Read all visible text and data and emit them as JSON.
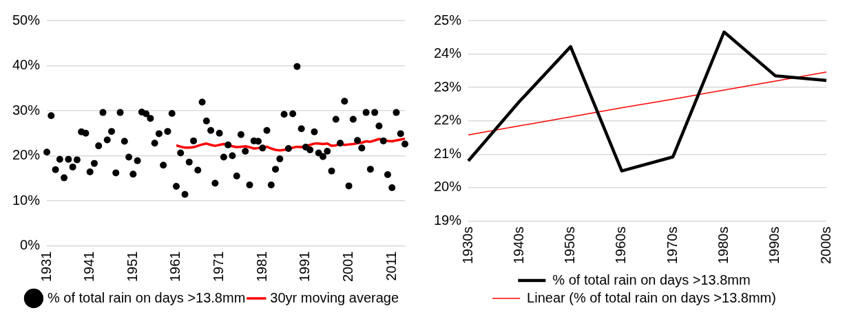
{
  "chart_data": [
    {
      "type": "scatter",
      "categories": [
        "1931",
        null,
        null,
        null,
        null,
        null,
        null,
        null,
        null,
        null,
        "1941",
        null,
        null,
        null,
        null,
        null,
        null,
        null,
        null,
        null,
        "1951",
        null,
        null,
        null,
        null,
        null,
        null,
        null,
        null,
        null,
        "1961",
        null,
        null,
        null,
        null,
        null,
        null,
        null,
        null,
        null,
        "1971",
        null,
        null,
        null,
        null,
        null,
        null,
        null,
        null,
        null,
        "1981",
        null,
        null,
        null,
        null,
        null,
        null,
        null,
        null,
        null,
        "1991",
        null,
        null,
        null,
        null,
        null,
        null,
        null,
        null,
        null,
        "2001",
        null,
        null,
        null,
        null,
        null,
        null,
        null,
        null,
        null,
        "2011",
        null,
        null,
        null
      ],
      "series": [
        {
          "name": "% of total rain on days >13.8mm",
          "marker": "circle",
          "color": "#000000",
          "values": [
            20.8,
            28.9,
            16.9,
            19.2,
            15.1,
            19.2,
            17.5,
            19.1,
            25.3,
            25.0,
            16.4,
            18.3,
            22.2,
            29.6,
            23.5,
            25.4,
            16.2,
            29.6,
            23.2,
            19.7,
            15.9,
            18.9,
            29.7,
            29.3,
            28.3,
            22.8,
            24.9,
            17.9,
            25.4,
            29.4,
            13.2,
            20.6,
            11.4,
            18.6,
            23.3,
            16.8,
            31.9,
            27.7,
            25.6,
            13.9,
            25.0,
            19.7,
            22.4,
            20.0,
            15.5,
            24.7,
            21.0,
            13.5,
            23.3,
            23.2,
            21.7,
            25.6,
            13.5,
            17.0,
            19.3,
            29.2,
            21.6,
            29.3,
            39.8,
            26.0,
            21.9,
            21.3,
            25.3,
            20.6,
            19.8,
            21.0,
            16.6,
            28.1,
            22.8,
            32.1,
            13.3,
            28.1,
            23.4,
            21.7,
            29.6,
            17.0,
            29.6,
            26.6,
            23.3,
            15.8,
            12.9,
            29.6,
            24.9,
            22.6
          ]
        },
        {
          "name": "30yr moving average",
          "type": "line",
          "marker": "none",
          "color": "#ff0000",
          "values": [
            null,
            null,
            null,
            null,
            null,
            null,
            null,
            null,
            null,
            null,
            null,
            null,
            null,
            null,
            null,
            null,
            null,
            null,
            null,
            null,
            null,
            null,
            null,
            null,
            null,
            null,
            null,
            null,
            null,
            null,
            22.3,
            22.0,
            21.8,
            21.8,
            21.9,
            22.2,
            22.5,
            22.7,
            22.4,
            22.2,
            22.4,
            22.6,
            22.4,
            22.1,
            21.9,
            22.0,
            22.1,
            21.9,
            21.6,
            21.7,
            21.9,
            22.0,
            21.6,
            21.3,
            21.2,
            21.3,
            21.4,
            21.8,
            22.0,
            21.9,
            22.1,
            22.4,
            22.7,
            22.7,
            22.6,
            22.7,
            22.2,
            22.3,
            22.6,
            22.4,
            22.5,
            22.6,
            22.8,
            22.9,
            23.2,
            23.1,
            23.4,
            23.7,
            23.5,
            23.3,
            23.2,
            23.4,
            23.6,
            23.8
          ]
        }
      ],
      "ylim": [
        0,
        50
      ],
      "yticks": [
        {
          "value": 0,
          "label": "0%"
        },
        {
          "value": 10,
          "label": "10%"
        },
        {
          "value": 20,
          "label": "20%"
        },
        {
          "value": 30,
          "label": "30%"
        },
        {
          "value": 40,
          "label": "40%"
        },
        {
          "value": 50,
          "label": "50%"
        }
      ],
      "grid": "y",
      "legend": "bottom"
    },
    {
      "type": "line",
      "categories": [
        "1930s",
        "1940s",
        "1950s",
        "1960s",
        "1970s",
        "1980s",
        "1990s",
        "2000s"
      ],
      "series": [
        {
          "name": "% of total rain on days >13.8mm",
          "marker": "none",
          "color": "#000000",
          "values": [
            20.8,
            22.58,
            24.22,
            20.5,
            20.92,
            24.66,
            23.35,
            23.21
          ]
        },
        {
          "name": "Linear (% of total rain on days >13.8mm)",
          "marker": "none",
          "color": "#ff0000",
          "values": [
            21.58,
            21.85,
            22.12,
            22.39,
            22.65,
            22.92,
            23.19,
            23.46
          ]
        }
      ],
      "ylim": [
        19,
        25
      ],
      "yticks": [
        {
          "value": 19,
          "label": "19%"
        },
        {
          "value": 20,
          "label": "20%"
        },
        {
          "value": 21,
          "label": "21%"
        },
        {
          "value": 22,
          "label": "22%"
        },
        {
          "value": 23,
          "label": "23%"
        },
        {
          "value": 24,
          "label": "24%"
        },
        {
          "value": 25,
          "label": "25%"
        }
      ],
      "grid": "y",
      "legend": "bottom"
    }
  ]
}
